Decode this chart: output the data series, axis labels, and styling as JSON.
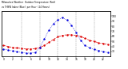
{
  "hours": [
    0,
    1,
    2,
    3,
    4,
    5,
    6,
    7,
    8,
    9,
    10,
    11,
    12,
    13,
    14,
    15,
    16,
    17,
    18,
    19,
    20,
    21,
    22,
    23
  ],
  "temp_red": [
    42,
    40,
    38,
    37,
    36,
    35,
    35,
    36,
    38,
    42,
    48,
    54,
    59,
    62,
    63,
    63,
    62,
    60,
    56,
    52,
    50,
    47,
    46,
    44
  ],
  "thsw_blue": [
    35,
    33,
    31,
    30,
    28,
    27,
    27,
    28,
    38,
    55,
    72,
    85,
    93,
    97,
    92,
    82,
    68,
    52,
    42,
    37,
    34,
    32,
    30,
    28
  ],
  "red_color": "#dd0000",
  "blue_color": "#0000dd",
  "background_color": "#ffffff",
  "grid_color": "#999999",
  "ylim": [
    20,
    110
  ],
  "ytick_right": [
    30,
    40,
    50,
    60,
    70,
    80,
    90,
    100
  ],
  "xtick_hours": [
    0,
    2,
    4,
    6,
    8,
    10,
    12,
    14,
    16,
    18,
    20,
    22
  ],
  "vgrid_x": [
    4,
    8,
    12,
    16,
    20
  ]
}
